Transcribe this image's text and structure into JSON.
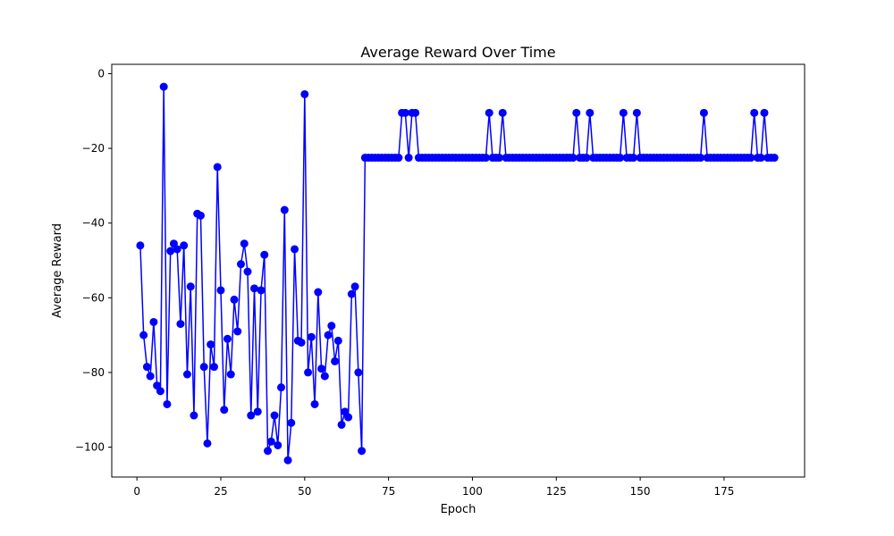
{
  "chart_data": {
    "type": "line",
    "title": "Average Reward Over Time",
    "xlabel": "Epoch",
    "ylabel": "Average Reward",
    "xlim": [
      -7.5,
      199
    ],
    "ylim": [
      -108,
      2.5
    ],
    "xticks": [
      0,
      25,
      50,
      75,
      100,
      125,
      150,
      175
    ],
    "yticks": [
      0,
      -20,
      -40,
      -60,
      -80,
      -100
    ],
    "grid": false,
    "series": [
      {
        "color": "#0000ff",
        "marker": "circle",
        "x": [
          1,
          2,
          3,
          4,
          5,
          6,
          7,
          8,
          9,
          10,
          11,
          12,
          13,
          14,
          15,
          16,
          17,
          18,
          19,
          20,
          21,
          22,
          23,
          24,
          25,
          26,
          27,
          28,
          29,
          30,
          31,
          32,
          33,
          34,
          35,
          36,
          37,
          38,
          39,
          40,
          41,
          42,
          43,
          44,
          45,
          46,
          47,
          48,
          49,
          50,
          51,
          52,
          53,
          54,
          55,
          56,
          57,
          58,
          59,
          60,
          61,
          62,
          63,
          64,
          65,
          66,
          67,
          68,
          69,
          70,
          71,
          72,
          73,
          74,
          75,
          76,
          77,
          78,
          79,
          80,
          81,
          82,
          83,
          84,
          85,
          86,
          87,
          88,
          89,
          90,
          91,
          92,
          93,
          94,
          95,
          96,
          97,
          98,
          99,
          100,
          101,
          102,
          103,
          104,
          105,
          106,
          107,
          108,
          109,
          110,
          111,
          112,
          113,
          114,
          115,
          116,
          117,
          118,
          119,
          120,
          121,
          122,
          123,
          124,
          125,
          126,
          127,
          128,
          129,
          130,
          131,
          132,
          133,
          134,
          135,
          136,
          137,
          138,
          139,
          140,
          141,
          142,
          143,
          144,
          145,
          146,
          147,
          148,
          149,
          150,
          151,
          152,
          153,
          154,
          155,
          156,
          157,
          158,
          159,
          160,
          161,
          162,
          163,
          164,
          165,
          166,
          167,
          168,
          169,
          170,
          171,
          172,
          173,
          174,
          175,
          176,
          177,
          178,
          179,
          180,
          181,
          182,
          183,
          184,
          185,
          186,
          187,
          188,
          189,
          190
        ],
        "values": [
          -46,
          -70,
          -78.5,
          -81,
          -66.5,
          -83.5,
          -85,
          -3.5,
          -88.5,
          -47.5,
          -45.5,
          -47,
          -67,
          -46,
          -80.5,
          -57,
          -91.5,
          -37.5,
          -38,
          -78.5,
          -99,
          -72.5,
          -78.5,
          -25,
          -58,
          -90,
          -71,
          -80.5,
          -60.5,
          -69,
          -51,
          -45.5,
          -53,
          -91.5,
          -57.5,
          -90.5,
          -58,
          -48.5,
          -101,
          -98.5,
          -91.5,
          -99.5,
          -84,
          -36.5,
          -103.5,
          -93.5,
          -47,
          -71.5,
          -72,
          -5.5,
          -80,
          -70.5,
          -88.5,
          -58.5,
          -79,
          -81,
          -70,
          -67.5,
          -77,
          -71.5,
          -94,
          -90.5,
          -92,
          -59,
          -57,
          -80,
          -101,
          -22.5,
          -22.5,
          -22.5,
          -22.5,
          -22.5,
          -22.5,
          -22.5,
          -22.5,
          -22.5,
          -22.5,
          -22.5,
          -10.5,
          -10.5,
          -22.5,
          -10.5,
          -10.5,
          -22.5,
          -22.5,
          -22.5,
          -22.5,
          -22.5,
          -22.5,
          -22.5,
          -22.5,
          -22.5,
          -22.5,
          -22.5,
          -22.5,
          -22.5,
          -22.5,
          -22.5,
          -22.5,
          -22.5,
          -22.5,
          -22.5,
          -22.5,
          -22.5,
          -10.5,
          -22.5,
          -22.5,
          -22.5,
          -10.5,
          -22.5,
          -22.5,
          -22.5,
          -22.5,
          -22.5,
          -22.5,
          -22.5,
          -22.5,
          -22.5,
          -22.5,
          -22.5,
          -22.5,
          -22.5,
          -22.5,
          -22.5,
          -22.5,
          -22.5,
          -22.5,
          -22.5,
          -22.5,
          -22.5,
          -10.5,
          -22.5,
          -22.5,
          -22.5,
          -10.5,
          -22.5,
          -22.5,
          -22.5,
          -22.5,
          -22.5,
          -22.5,
          -22.5,
          -22.5,
          -22.5,
          -10.5,
          -22.5,
          -22.5,
          -22.5,
          -10.5,
          -22.5,
          -22.5,
          -22.5,
          -22.5,
          -22.5,
          -22.5,
          -22.5,
          -22.5,
          -22.5,
          -22.5,
          -22.5,
          -22.5,
          -22.5,
          -22.5,
          -22.5,
          -22.5,
          -22.5,
          -22.5,
          -22.5,
          -10.5,
          -22.5,
          -22.5,
          -22.5,
          -22.5,
          -22.5,
          -22.5,
          -22.5,
          -22.5,
          -22.5,
          -22.5,
          -22.5,
          -22.5,
          -22.5,
          -22.5,
          -10.5,
          -22.5,
          -22.5,
          -10.5,
          -22.5,
          -22.5,
          -22.5
        ]
      }
    ]
  }
}
